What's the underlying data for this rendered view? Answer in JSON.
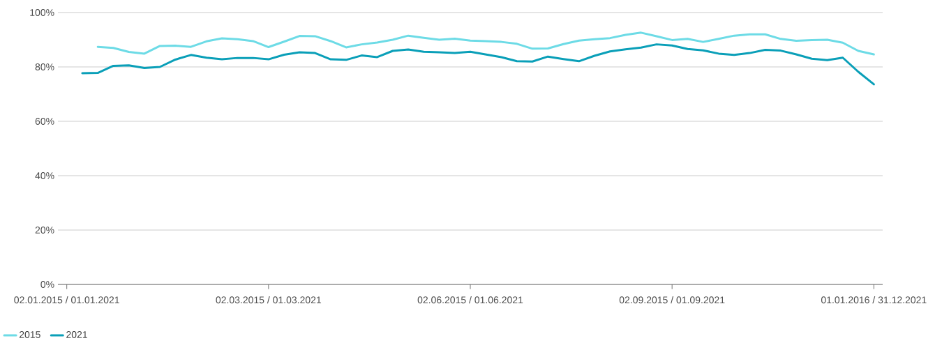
{
  "chart_data": {
    "type": "line",
    "ylim": [
      0,
      100
    ],
    "categories": [
      "02.01.2015 / 01.01.2021",
      null,
      null,
      null,
      null,
      null,
      null,
      null,
      null,
      null,
      null,
      null,
      null,
      "02.03.2015 / 01.03.2021",
      null,
      null,
      null,
      null,
      null,
      null,
      null,
      null,
      null,
      null,
      null,
      null,
      "02.06.2015 / 01.06.2021",
      null,
      null,
      null,
      null,
      null,
      null,
      null,
      null,
      null,
      null,
      null,
      null,
      "02.09.2015 / 01.09.2021",
      null,
      null,
      null,
      null,
      null,
      null,
      null,
      null,
      null,
      null,
      null,
      null,
      "01.01.2016 / 31.12.2021"
    ],
    "yticks": [
      {
        "value": 0,
        "label": "0%"
      },
      {
        "value": 20,
        "label": "20%"
      },
      {
        "value": 40,
        "label": "40%"
      },
      {
        "value": 60,
        "label": "60%"
      },
      {
        "value": 80,
        "label": "80%"
      },
      {
        "value": 100,
        "label": "100%"
      }
    ],
    "grid": "y",
    "legend": "bottom left",
    "marker": "none",
    "line_style": "solid",
    "series": [
      {
        "name": "2015",
        "color": "#6ddbe6",
        "values": [
          null,
          null,
          87.4,
          87.0,
          85.5,
          84.9,
          87.7,
          87.8,
          87.4,
          89.4,
          90.5,
          90.2,
          89.5,
          87.3,
          89.3,
          91.4,
          91.3,
          89.5,
          87.2,
          88.3,
          89.0,
          90.0,
          91.5,
          90.7,
          90.0,
          90.4,
          89.7,
          89.5,
          89.2,
          88.5,
          86.7,
          86.8,
          88.4,
          89.7,
          90.2,
          90.6,
          91.8,
          92.6,
          91.3,
          89.9,
          90.3,
          89.2,
          90.3,
          91.5,
          92.0,
          92.0,
          90.3,
          89.6,
          89.9,
          90.0,
          88.9,
          85.9,
          84.6
        ]
      },
      {
        "name": "2021",
        "color": "#0a9fb8",
        "values": [
          null,
          77.7,
          77.8,
          80.4,
          80.6,
          79.6,
          80.0,
          82.7,
          84.4,
          83.4,
          82.8,
          83.3,
          83.3,
          82.8,
          84.5,
          85.4,
          85.1,
          82.8,
          82.6,
          84.2,
          83.6,
          85.9,
          86.4,
          85.6,
          85.4,
          85.1,
          85.6,
          84.6,
          83.6,
          82.1,
          82.0,
          83.8,
          82.9,
          82.1,
          84.1,
          85.7,
          86.5,
          87.1,
          88.3,
          87.9,
          86.6,
          86.1,
          84.9,
          84.4,
          85.1,
          86.3,
          86.0,
          84.6,
          83.0,
          82.5,
          83.4,
          78.2,
          73.6
        ]
      }
    ]
  }
}
